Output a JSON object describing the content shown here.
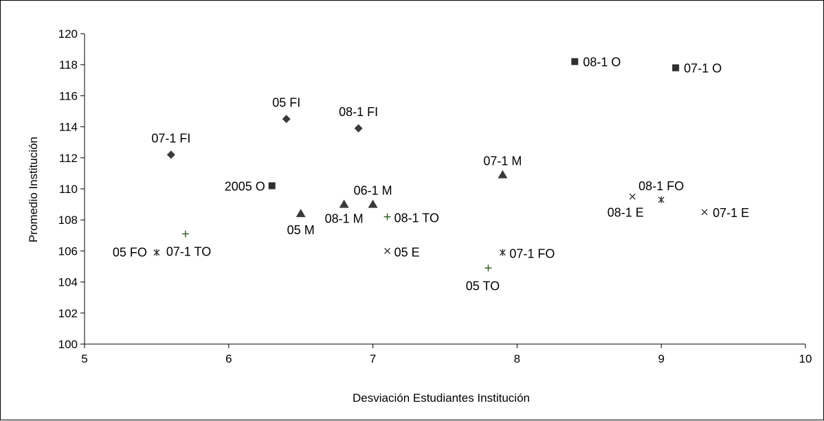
{
  "chart_data": {
    "type": "scatter",
    "title": "",
    "xlabel": "Desviación Estudiantes Institución",
    "ylabel": "Promedio Institución",
    "xlim": [
      5,
      10
    ],
    "ylim": [
      100,
      120
    ],
    "x_ticks": [
      5,
      6,
      7,
      8,
      9,
      10
    ],
    "y_ticks": [
      100,
      102,
      104,
      106,
      108,
      110,
      112,
      114,
      116,
      118,
      120
    ],
    "grid": false,
    "legend": "none",
    "series": [
      {
        "marker": "diamond",
        "color": "#3a3a3a",
        "points": [
          {
            "label": "07-1 FI",
            "x": 5.6,
            "y": 112.2
          },
          {
            "label": "05 FI",
            "x": 6.4,
            "y": 114.5
          },
          {
            "label": "08-1 FI",
            "x": 6.9,
            "y": 113.9
          }
        ]
      },
      {
        "marker": "square",
        "color": "#2f2f2f",
        "points": [
          {
            "label": "2005 O",
            "x": 6.3,
            "y": 110.2
          },
          {
            "label": "08-1 O",
            "x": 8.4,
            "y": 118.2
          },
          {
            "label": "07-1 O",
            "x": 9.1,
            "y": 117.8
          }
        ]
      },
      {
        "marker": "triangle",
        "color": "#3a3a3a",
        "points": [
          {
            "label": "05 M",
            "x": 6.5,
            "y": 108.4
          },
          {
            "label": "08-1 M",
            "x": 6.8,
            "y": 109.0
          },
          {
            "label": "06-1 M",
            "x": 7.0,
            "y": 109.0
          },
          {
            "label": "07-1 M",
            "x": 7.9,
            "y": 110.9
          }
        ]
      },
      {
        "marker": "x",
        "color": "#333333",
        "points": [
          {
            "label": "05 E",
            "x": 7.1,
            "y": 106.0
          },
          {
            "label": "08-1 E",
            "x": 8.8,
            "y": 109.5
          },
          {
            "label": "07-1 E",
            "x": 9.3,
            "y": 108.5
          }
        ]
      },
      {
        "marker": "star",
        "color": "#333333",
        "points": [
          {
            "label": "05 FO",
            "x": 5.5,
            "y": 105.9
          },
          {
            "label": "07-1 FO",
            "x": 7.9,
            "y": 105.9
          },
          {
            "label": "08-1 FO",
            "x": 9.0,
            "y": 109.3
          }
        ]
      },
      {
        "marker": "plus",
        "color": "#2e5a1f",
        "points": [
          {
            "label": "07-1 TO",
            "x": 5.7,
            "y": 107.1
          },
          {
            "label": "08-1 TO",
            "x": 7.1,
            "y": 108.2
          },
          {
            "label": "05 TO",
            "x": 7.8,
            "y": 104.9
          }
        ]
      }
    ]
  }
}
